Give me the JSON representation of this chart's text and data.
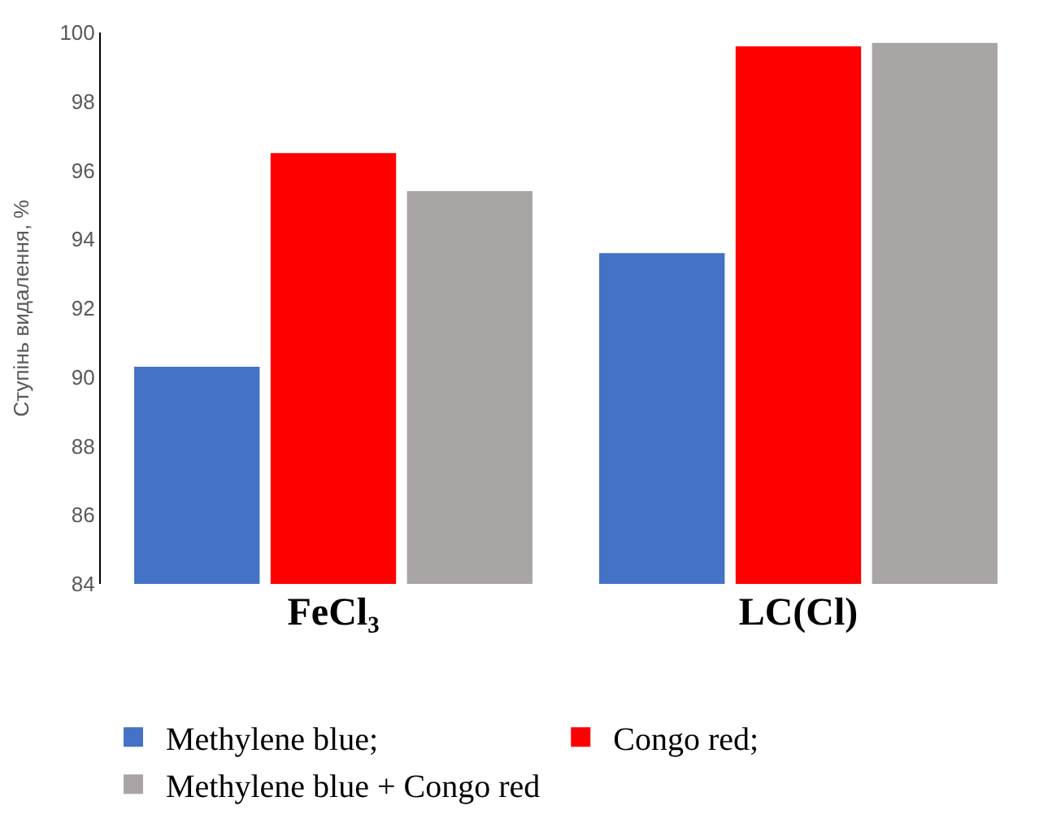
{
  "chart_data": {
    "type": "bar",
    "ylabel": "Ступінь видалення, %",
    "categories": [
      "FeCl₃",
      "LC(Cl)"
    ],
    "series": [
      {
        "name": "Methylene blue;",
        "color": "#4472c4",
        "values": [
          90.3,
          93.6
        ]
      },
      {
        "name": "Congo red;",
        "color": "#ff0000",
        "values": [
          96.5,
          99.6
        ]
      },
      {
        "name": "Methylene blue + Congo red",
        "color": "#a9a5a5",
        "values": [
          95.4,
          99.7
        ]
      }
    ],
    "ylim": [
      84,
      100
    ],
    "yticks": [
      84,
      86,
      88,
      90,
      92,
      94,
      96,
      98,
      100
    ],
    "grid": false,
    "legend": "bottom"
  }
}
